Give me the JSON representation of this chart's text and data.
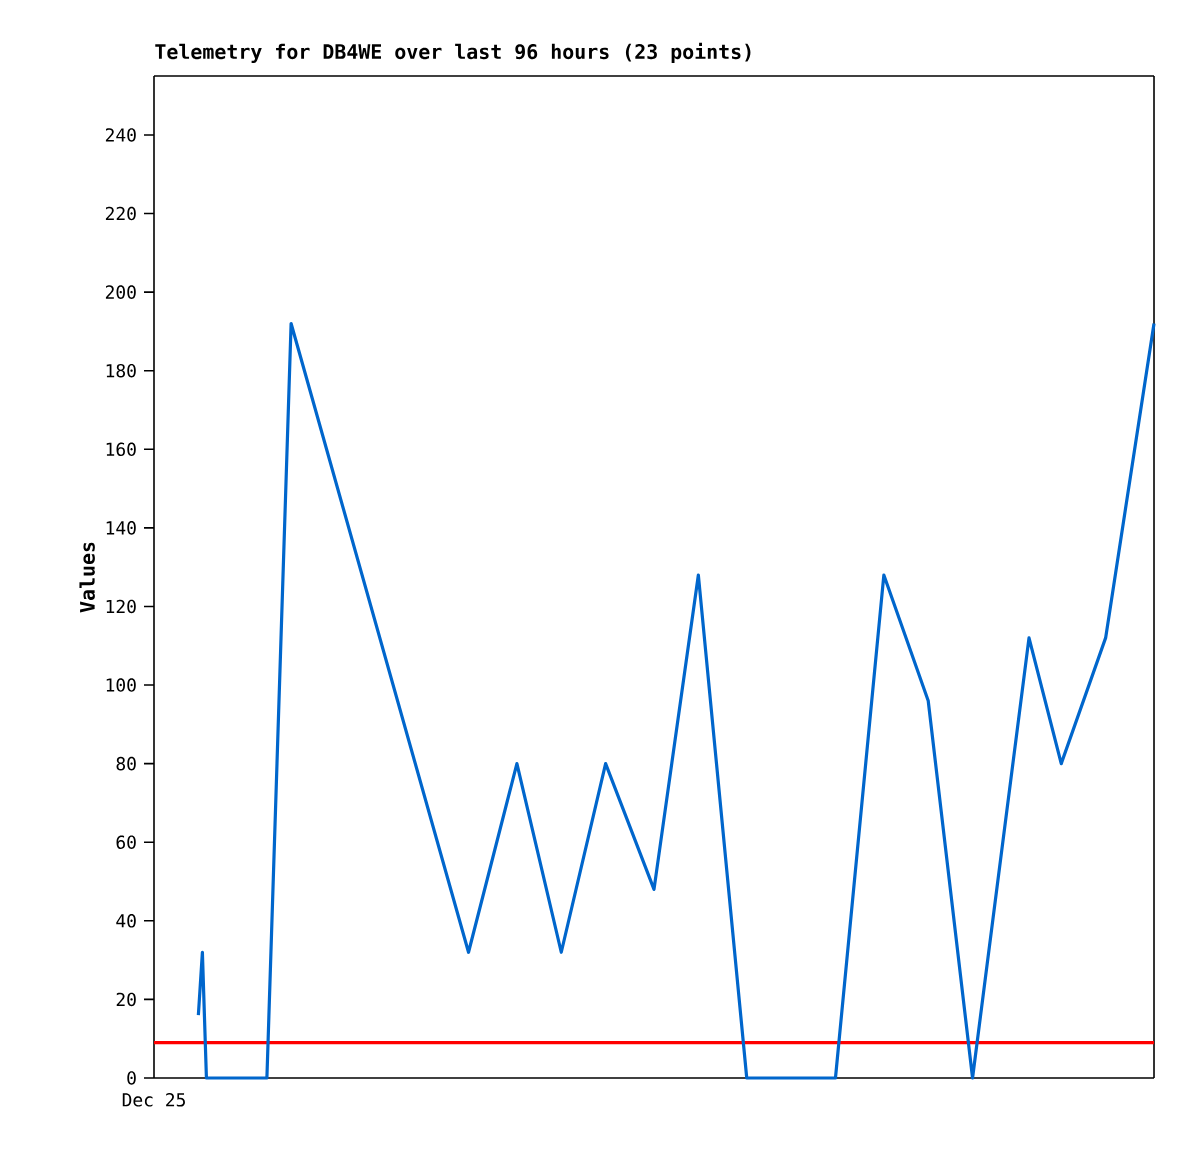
{
  "chart_data": {
    "type": "line",
    "title": "Telemetry for DB4WE over last 96 hours (23 points)",
    "ylabel": "Values",
    "annotations": [
      "Dec 25"
    ],
    "ylim": [
      0,
      255
    ],
    "yticks": [
      0,
      20,
      40,
      60,
      80,
      100,
      120,
      140,
      160,
      180,
      200,
      220,
      240
    ],
    "categories": [
      null,
      null,
      null,
      null,
      null,
      null,
      null,
      null,
      null,
      null,
      null,
      null,
      null,
      null,
      null,
      null,
      null,
      null,
      null,
      null,
      null,
      null,
      null,
      null,
      null,
      null,
      null,
      null,
      null,
      null,
      null,
      null,
      null,
      null,
      null,
      null,
      null,
      null,
      null,
      null,
      null,
      null,
      null,
      null,
      null,
      null,
      null,
      null,
      null,
      null,
      null,
      null,
      null,
      null,
      null,
      null,
      null,
      null,
      null,
      null,
      null,
      null,
      null,
      null,
      null,
      null,
      null,
      null,
      null,
      null,
      null,
      null,
      null,
      null,
      null,
      null,
      null,
      null,
      null,
      null,
      null,
      null,
      null,
      null,
      null,
      null,
      null,
      null,
      null,
      null,
      null,
      null,
      null,
      null,
      null,
      null,
      null,
      null,
      null,
      null,
      null,
      null,
      null,
      null,
      null,
      null,
      null,
      null,
      null,
      null,
      null,
      null,
      null,
      null,
      null,
      null,
      null,
      null,
      null,
      null,
      null,
      null,
      null,
      null,
      null,
      null,
      null,
      null,
      null,
      null,
      null,
      null,
      null,
      null,
      null,
      null,
      null,
      null,
      null,
      null,
      null,
      null,
      null,
      null,
      null,
      null,
      null,
      null,
      null,
      null,
      null,
      null,
      null,
      null,
      null,
      null,
      null,
      null,
      null,
      null,
      null,
      null,
      null,
      null,
      null,
      null,
      null,
      null,
      null,
      null,
      null,
      null,
      null,
      null,
      null,
      null,
      null,
      null,
      null,
      null,
      null,
      null,
      null,
      null,
      null,
      null,
      null,
      null,
      null,
      null,
      null,
      null,
      null,
      null,
      null,
      null,
      null,
      null,
      null,
      null,
      null,
      null,
      null,
      null,
      null,
      null,
      null,
      null,
      null,
      null,
      null,
      null,
      null,
      null,
      null,
      null,
      null,
      null,
      null,
      null,
      null,
      null,
      null,
      null,
      null,
      null,
      null,
      null,
      null,
      null,
      null,
      null,
      null,
      null,
      null,
      null,
      null,
      null,
      null,
      null,
      null,
      null,
      null,
      null,
      null,
      null,
      null,
      null,
      null
    ],
    "ref_lines": [
      {
        "axis": "y",
        "value": 9,
        "color": "#ff0000"
      }
    ],
    "series": [
      {
        "color": "#0066cc",
        "values": [
          null,
          null,
          null,
          null,
          null,
          null,
          null,
          null,
          null,
          null,
          null,
          16,
          32,
          0,
          null,
          null,
          null,
          null,
          null,
          null,
          null,
          null,
          null,
          null,
          null,
          null,
          null,
          null,
          0,
          null,
          null,
          null,
          null,
          null,
          192,
          null,
          null,
          null,
          null,
          null,
          null,
          null,
          null,
          null,
          null,
          null,
          null,
          null,
          null,
          null,
          null,
          null,
          null,
          null,
          null,
          null,
          null,
          null,
          null,
          null,
          null,
          null,
          null,
          null,
          null,
          null,
          null,
          null,
          null,
          null,
          null,
          null,
          null,
          null,
          null,
          null,
          null,
          null,
          32,
          null,
          null,
          null,
          null,
          null,
          null,
          null,
          null,
          null,
          null,
          null,
          80,
          null,
          null,
          null,
          null,
          null,
          null,
          null,
          null,
          null,
          null,
          32,
          null,
          null,
          null,
          null,
          null,
          null,
          null,
          null,
          null,
          null,
          80,
          null,
          null,
          null,
          null,
          null,
          null,
          null,
          null,
          null,
          null,
          null,
          48,
          null,
          null,
          null,
          null,
          null,
          null,
          null,
          null,
          null,
          null,
          128,
          null,
          null,
          null,
          null,
          null,
          null,
          null,
          null,
          null,
          null,
          null,
          0,
          null,
          null,
          null,
          null,
          null,
          null,
          null,
          null,
          null,
          null,
          null,
          null,
          null,
          null,
          null,
          null,
          null,
          null,
          null,
          null,
          null,
          0,
          null,
          null,
          null,
          null,
          null,
          null,
          null,
          null,
          null,
          null,
          null,
          128,
          null,
          null,
          null,
          null,
          null,
          null,
          null,
          null,
          null,
          null,
          96,
          null,
          null,
          null,
          null,
          null,
          null,
          null,
          null,
          null,
          null,
          0,
          null,
          null,
          null,
          null,
          null,
          null,
          null,
          null,
          null,
          null,
          null,
          null,
          null,
          112,
          null,
          null,
          null,
          null,
          null,
          null,
          null,
          80,
          null,
          null,
          null,
          null,
          null,
          null,
          null,
          null,
          null,
          null,
          112,
          null,
          null,
          null,
          null,
          null,
          null,
          null,
          null,
          null,
          null,
          null,
          192
        ]
      }
    ]
  }
}
